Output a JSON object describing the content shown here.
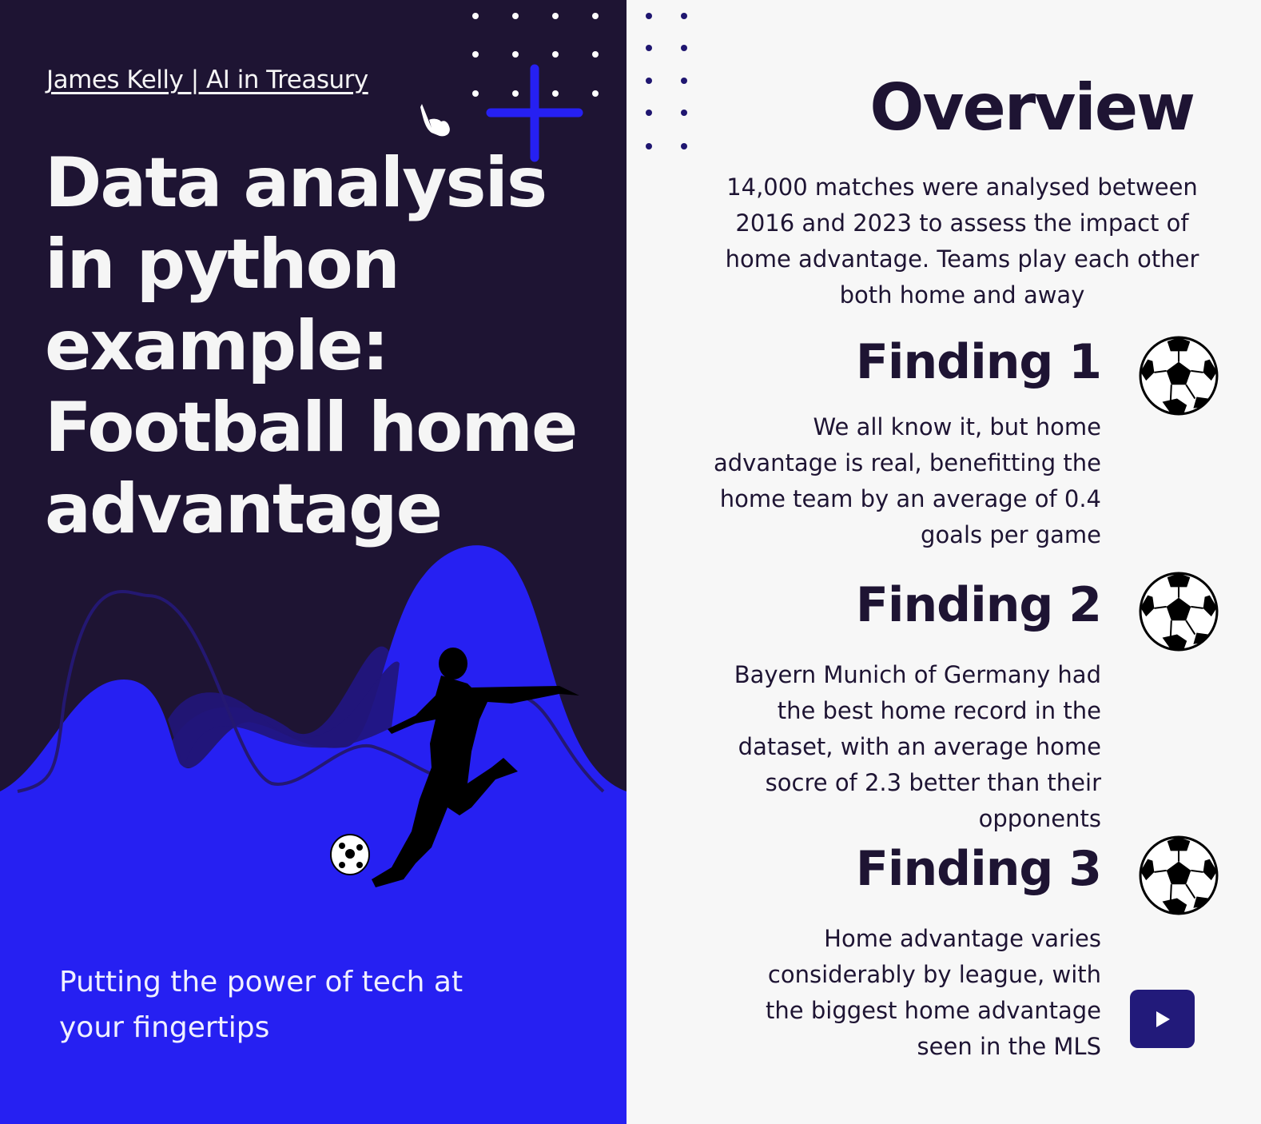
{
  "left": {
    "byline": "James Kelly | AI in Treasury",
    "title_lines": [
      "Data analysis",
      "in python",
      "example:",
      "Football home",
      "advantage"
    ],
    "tagline_lines": [
      "Putting the power of tech at",
      "your fingertips"
    ]
  },
  "right": {
    "overview_title": "Overview",
    "overview_text": "14,000 matches were analysed between 2016 and 2023 to assess the impact of home advantage. Teams play each other both home and away",
    "findings": [
      {
        "title": "Finding 1",
        "text": "We all know it, but home advantage is real, benefitting the home team by an average of 0.4 goals per game"
      },
      {
        "title": "Finding 2",
        "text": "Bayern Munich of Germany had the best home record in the dataset, with an average home socre of 2.3 better than their opponents"
      },
      {
        "title": "Finding 3",
        "text": "Home advantage varies considerably by league, with the biggest home advantage seen in the MLS"
      }
    ]
  },
  "colors": {
    "dark": "#1e1433",
    "accent_blue": "#2620f2",
    "light_bg": "#f7f7f7",
    "play_button": "#221a7a"
  },
  "icons": [
    "hand-pointer-icon",
    "plus-icon",
    "soccer-ball-icon",
    "play-icon",
    "footballer-silhouette"
  ]
}
